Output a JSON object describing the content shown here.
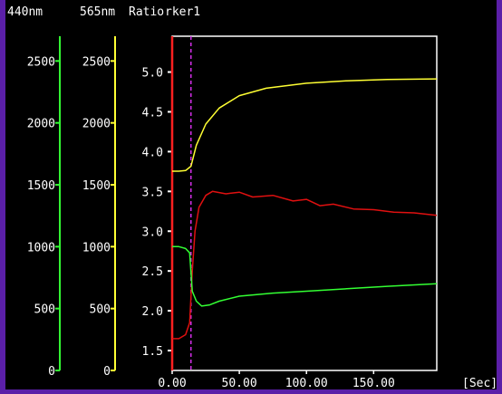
{
  "header": {
    "labels": [
      "440nm",
      "565nm",
      "Ratio",
      "rker1"
    ]
  },
  "colors": {
    "background": "#000000",
    "frame_purple": "#5b1fa8",
    "axis_440": "#33ff33",
    "axis_565": "#ffff33",
    "axis_ratio": "#ffffff",
    "marker_line": "#d22ee8",
    "start_line": "#ff2020",
    "text": "#ffffff"
  },
  "chart_data": {
    "type": "line",
    "xlabel": "[Sec]",
    "xlim": [
      0,
      197
    ],
    "x_ticks": [
      0,
      50,
      100,
      150
    ],
    "x_tick_labels": [
      "0.00",
      "50.00",
      "100.00",
      "150.00"
    ],
    "axes": {
      "axis_440": {
        "ylim": [
          0,
          2700
        ],
        "ticks": [
          0,
          500,
          1000,
          1500,
          2000,
          2500
        ]
      },
      "axis_565": {
        "ylim": [
          0,
          2700
        ],
        "ticks": [
          0,
          500,
          1000,
          1500,
          2000,
          2500
        ]
      },
      "axis_ratio": {
        "ylim": [
          1.25,
          5.45
        ],
        "ticks": [
          1.5,
          2.0,
          2.5,
          3.0,
          3.5,
          4.0,
          4.5,
          5.0
        ],
        "tick_labels": [
          "1.5",
          "2.0",
          "2.5",
          "3.0",
          "3.5",
          "4.0",
          "4.5",
          "5.0"
        ]
      }
    },
    "marker_x": 14,
    "series": [
      {
        "axis": "axis_565",
        "color": "yellow",
        "x": [
          0,
          5,
          10,
          14,
          18,
          25,
          35,
          50,
          70,
          100,
          130,
          160,
          197
        ],
        "y": [
          1610,
          1610,
          1615,
          1650,
          1820,
          1990,
          2120,
          2220,
          2280,
          2320,
          2340,
          2350,
          2355
        ]
      },
      {
        "axis": "axis_ratio",
        "color": "red",
        "x": [
          0,
          5,
          10,
          13,
          15,
          17,
          20,
          25,
          30,
          40,
          50,
          60,
          75,
          90,
          100,
          110,
          120,
          135,
          150,
          165,
          180,
          197
        ],
        "y": [
          1.65,
          1.65,
          1.7,
          1.85,
          2.5,
          3.0,
          3.3,
          3.45,
          3.5,
          3.47,
          3.49,
          3.43,
          3.45,
          3.38,
          3.4,
          3.32,
          3.34,
          3.28,
          3.27,
          3.24,
          3.23,
          3.2
        ]
      },
      {
        "axis": "axis_440",
        "color": "green",
        "x": [
          0,
          5,
          10,
          13,
          15,
          18,
          22,
          28,
          35,
          50,
          75,
          100,
          130,
          160,
          197
        ],
        "y": [
          1000,
          1000,
          985,
          950,
          640,
          560,
          520,
          530,
          560,
          600,
          625,
          640,
          660,
          680,
          700
        ]
      }
    ]
  }
}
